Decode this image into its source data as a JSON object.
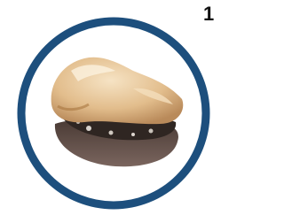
{
  "label": "1"
}
